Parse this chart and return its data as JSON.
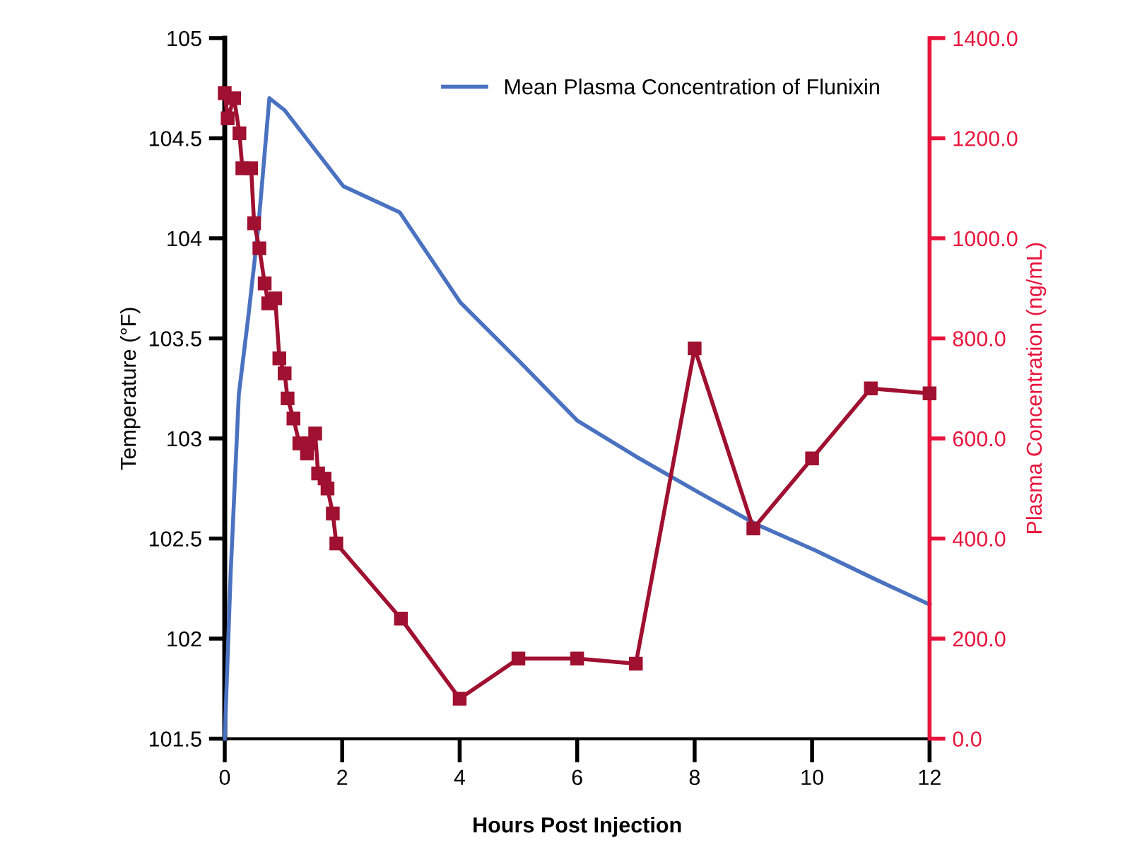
{
  "chart_data": {
    "type": "line",
    "xlabel": "Hours Post Injection",
    "ylabel": "Temperature (°F)",
    "y2label": "Plasma Concentration (ng/mL)",
    "series": [
      {
        "name": "Mean Plasma Concentration of Flunixin",
        "color": "#4a72c0",
        "marker": "none",
        "x": [
          0,
          0.1,
          0.24,
          0.41,
          0.57,
          0.76,
          1.02,
          1.44,
          2.02,
          2.98,
          4.01,
          5,
          6,
          7,
          8.07,
          9.06,
          10.06,
          11.05,
          12
        ],
        "values": [
          101.5,
          102.32,
          103.22,
          103.63,
          104.05,
          104.7,
          104.64,
          104.48,
          104.26,
          104.13,
          103.68,
          103.39,
          103.09,
          102.91,
          102.73,
          102.57,
          102.44,
          102.3,
          102.17
        ]
      },
      {
        "color": "#a01030",
        "marker": "square",
        "axis": "y2",
        "x": [
          0,
          0.05,
          0.16,
          0.25,
          0.3,
          0.45,
          0.5,
          0.59,
          0.68,
          0.74,
          0.86,
          0.93,
          1.02,
          1.07,
          1.17,
          1.27,
          1.4,
          1.44,
          1.54,
          1.59,
          1.7,
          1.75,
          1.84,
          1.9,
          3,
          4,
          5,
          6,
          7,
          8,
          9,
          10,
          11,
          12
        ],
        "values": [
          1290,
          1240,
          1280,
          1210,
          1140,
          1140,
          1030,
          980,
          910,
          870,
          880,
          760,
          730,
          680,
          640,
          590,
          570,
          590,
          610,
          530,
          520,
          500,
          450,
          390,
          240,
          80,
          160,
          160,
          150,
          780,
          420,
          560,
          700,
          690
        ]
      }
    ],
    "xlim": [
      0,
      12
    ],
    "xticks": [
      0,
      2,
      4,
      6,
      8,
      10,
      12
    ],
    "ylim": [
      101.5,
      105
    ],
    "yticks": [
      101.5,
      102,
      102.5,
      103,
      103.5,
      104,
      104.5,
      105
    ],
    "y2lim": [
      0,
      1400
    ],
    "y2ticks": [
      {
        "value": 0,
        "label": "0.0"
      },
      {
        "value": 200,
        "label": "200.0"
      },
      {
        "value": 400,
        "label": "400.0"
      },
      {
        "value": 600,
        "label": "600.0"
      },
      {
        "value": 800,
        "label": "800.0"
      },
      {
        "value": 1000,
        "label": "1000.0"
      },
      {
        "value": 1200,
        "label": "1200.0"
      },
      {
        "value": 1400,
        "label": "1400.0"
      }
    ],
    "grid": false,
    "legend": "top",
    "line_style": "solid"
  }
}
